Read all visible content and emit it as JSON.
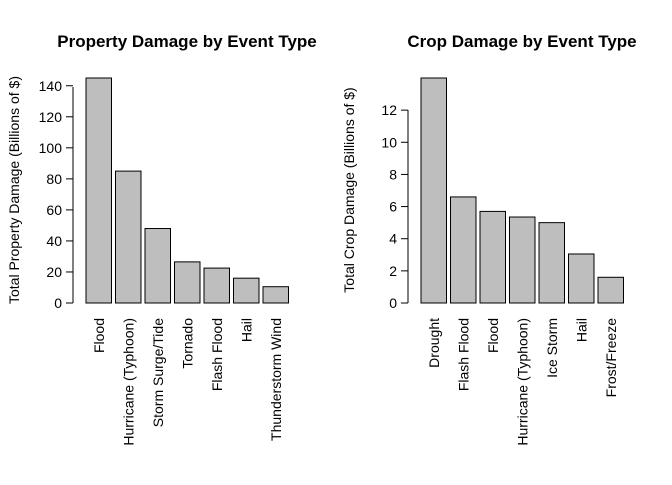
{
  "chart_data": [
    {
      "type": "bar",
      "title": "Property Damage by Event Type",
      "xlabel": "",
      "ylabel": "Total Property Damage (Billions of $)",
      "categories": [
        "Flood",
        "Hurricane (Typhoon)",
        "Storm Surge/Tide",
        "Tornado",
        "Flash Flood",
        "Hail",
        "Thunderstorm Wind"
      ],
      "values": [
        145,
        85,
        48,
        26.5,
        22.5,
        16,
        10.5
      ],
      "yticks": [
        0,
        20,
        40,
        60,
        80,
        100,
        120,
        140
      ],
      "ylim": [
        0,
        145
      ],
      "bar_color": "#bebebe",
      "grid": false
    },
    {
      "type": "bar",
      "title": "Crop Damage by Event Type",
      "xlabel": "",
      "ylabel": "Total Crop Damage (Billions of $)",
      "categories": [
        "Drought",
        "Flash Flood",
        "Flood",
        "Hurricane (Typhoon)",
        "Ice Storm",
        "Hail",
        "Frost/Freeze"
      ],
      "values": [
        14,
        6.6,
        5.7,
        5.35,
        5,
        3.05,
        1.6
      ],
      "yticks": [
        0,
        2,
        4,
        6,
        8,
        10,
        12
      ],
      "ylim": [
        0,
        14
      ],
      "bar_color": "#bebebe",
      "grid": false
    }
  ]
}
